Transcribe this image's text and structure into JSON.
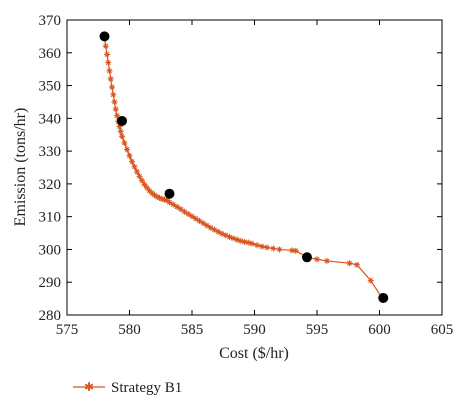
{
  "chart_data": {
    "type": "scatter",
    "xlabel": "Cost ($/hr)",
    "ylabel": "Emission (tons/hr)",
    "xlim": [
      575,
      605
    ],
    "ylim": [
      280,
      370
    ],
    "x_ticks": [
      "575",
      "580",
      "585",
      "590",
      "595",
      "600",
      "605"
    ],
    "y_ticks": [
      "280",
      "290",
      "300",
      "310",
      "320",
      "330",
      "340",
      "350",
      "360",
      "370"
    ],
    "grid": false,
    "legend_position": "bottom-left",
    "colors": {
      "series": "#d9541e",
      "highlight": "#000000"
    },
    "series": [
      {
        "name": "Strategy B1",
        "x": [
          578.0,
          578.1,
          578.2,
          578.3,
          578.4,
          578.5,
          578.6,
          578.7,
          578.8,
          578.9,
          579.0,
          579.1,
          579.2,
          579.3,
          579.4,
          579.6,
          579.8,
          580.0,
          580.2,
          580.4,
          580.6,
          580.8,
          581.0,
          581.2,
          581.4,
          581.6,
          581.8,
          582.0,
          582.2,
          582.4,
          582.6,
          582.8,
          583.0,
          583.2,
          583.5,
          583.8,
          584.1,
          584.4,
          584.7,
          585.0,
          585.3,
          585.6,
          585.9,
          586.2,
          586.5,
          586.8,
          587.1,
          587.4,
          587.7,
          588.0,
          588.3,
          588.6,
          588.9,
          589.2,
          589.5,
          589.8,
          590.2,
          590.6,
          591.0,
          591.5,
          592.0,
          593.0,
          593.3,
          594.2,
          595.0,
          595.8,
          597.6,
          598.2,
          599.3,
          600.2
        ],
        "y": [
          365.0,
          362.0,
          359.5,
          357.0,
          354.5,
          352.0,
          349.5,
          347.2,
          345.0,
          342.8,
          340.8,
          339.0,
          337.5,
          336.0,
          334.5,
          332.5,
          330.5,
          328.6,
          326.8,
          325.2,
          323.7,
          322.3,
          321.0,
          319.8,
          318.8,
          317.9,
          317.2,
          316.6,
          316.1,
          315.7,
          315.4,
          315.2,
          315.0,
          314.4,
          313.7,
          313.0,
          312.3,
          311.5,
          310.8,
          310.1,
          309.4,
          308.7,
          308.0,
          307.3,
          306.6,
          306.0,
          305.4,
          304.8,
          304.3,
          303.8,
          303.4,
          303.0,
          302.6,
          302.3,
          302.1,
          301.8,
          301.3,
          300.9,
          300.6,
          300.3,
          300.0,
          299.7,
          299.6,
          297.6,
          297.0,
          296.5,
          295.8,
          295.3,
          290.5,
          285.2
        ]
      }
    ],
    "highlighted_points": [
      {
        "x": 578.0,
        "y": 365.0
      },
      {
        "x": 579.4,
        "y": 339.2
      },
      {
        "x": 583.2,
        "y": 317.0
      },
      {
        "x": 594.2,
        "y": 297.6
      },
      {
        "x": 600.3,
        "y": 285.2
      }
    ]
  }
}
